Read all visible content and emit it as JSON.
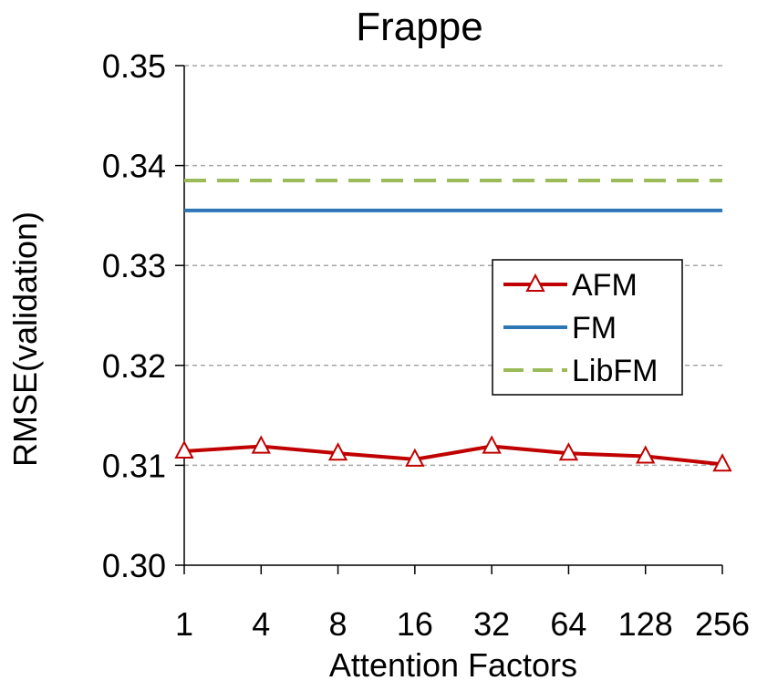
{
  "chart_data": {
    "type": "line",
    "title": "Frappe",
    "xlabel": "Attention Factors",
    "ylabel": "RMSE(validation)",
    "categories": [
      "1",
      "4",
      "8",
      "16",
      "32",
      "64",
      "128",
      "256"
    ],
    "ylim": [
      0.3,
      0.35
    ],
    "yticks": [
      "0.30",
      "0.31",
      "0.32",
      "0.33",
      "0.34",
      "0.35"
    ],
    "grid": true,
    "legend_position": "right",
    "series": [
      {
        "name": "AFM",
        "values": [
          0.3114,
          0.3119,
          0.3112,
          0.3106,
          0.3119,
          0.3112,
          0.3109,
          0.3101
        ],
        "color": "#c00000",
        "style": "solid",
        "marker": "triangle-open"
      },
      {
        "name": "FM",
        "values": [
          0.3355,
          0.3355,
          0.3355,
          0.3355,
          0.3355,
          0.3355,
          0.3355,
          0.3355
        ],
        "color": "#2e75b6",
        "style": "solid",
        "marker": "none"
      },
      {
        "name": "LibFM",
        "values": [
          0.3385,
          0.3385,
          0.3385,
          0.3385,
          0.3385,
          0.3385,
          0.3385,
          0.3385
        ],
        "color": "#9bbb59",
        "style": "dashed",
        "marker": "none"
      }
    ]
  }
}
